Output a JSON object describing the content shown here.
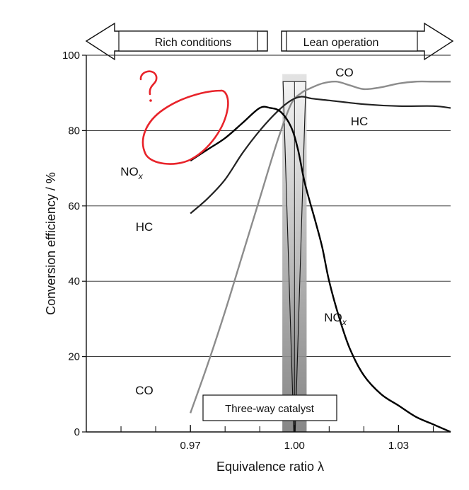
{
  "chart_data": {
    "type": "line",
    "xlabel": "Equivalence ratio λ",
    "ylabel": "Conversion efficiency / %",
    "xlim": [
      0.94,
      1.045
    ],
    "ylim": [
      0,
      100
    ],
    "xticks": [
      0.97,
      1.0,
      1.03
    ],
    "xtick_labels": [
      "0.97",
      "1.00",
      "1.03"
    ],
    "yticks": [
      0,
      20,
      40,
      60,
      80,
      100
    ],
    "ytick_labels": [
      "0",
      "20",
      "40",
      "60",
      "80",
      "100"
    ],
    "grid": "horizontal",
    "series": [
      {
        "name": "CO",
        "color": "#8c8c8c",
        "x": [
          0.97,
          0.975,
          0.98,
          0.985,
          0.99,
          0.995,
          0.999,
          1.002,
          1.004,
          1.008,
          1.012,
          1.016,
          1.02,
          1.025,
          1.03,
          1.035,
          1.04,
          1.045
        ],
        "y": [
          5,
          18,
          32,
          47,
          62,
          77,
          87,
          90,
          91,
          92.5,
          93,
          92,
          91,
          91.5,
          92.5,
          93,
          93,
          93
        ]
      },
      {
        "name": "HC",
        "color": "#222222",
        "x": [
          0.97,
          0.975,
          0.98,
          0.985,
          0.99,
          0.995,
          0.999,
          1.002,
          1.005,
          1.01,
          1.02,
          1.03,
          1.04,
          1.045
        ],
        "y": [
          58,
          62,
          67,
          74,
          80,
          85,
          88,
          89,
          88.5,
          88,
          87,
          86.5,
          86.5,
          86
        ]
      },
      {
        "name": "NOx",
        "color": "#000000",
        "x": [
          0.97,
          0.975,
          0.98,
          0.985,
          0.99,
          0.993,
          0.996,
          0.999,
          1.001,
          1.003,
          1.006,
          1.008,
          1.01,
          1.013,
          1.016,
          1.02,
          1.025,
          1.03,
          1.035,
          1.04,
          1.045
        ],
        "y": [
          72,
          75,
          78,
          82,
          86,
          86,
          85,
          81,
          75,
          66,
          56,
          49,
          40,
          30,
          22,
          15,
          10,
          7,
          4,
          2,
          0
        ]
      }
    ],
    "curve_labels": [
      {
        "series": "CO",
        "text": "CO",
        "x": 0.994,
        "y": 2,
        "dx": -190,
        "dy": -50
      },
      {
        "series": "HC",
        "text": "HC",
        "x": 0.97,
        "y": 55
      },
      {
        "series": "NOx",
        "text": "NO",
        "sub": "x",
        "x": 0.968,
        "y": 69
      },
      {
        "series": "CO",
        "text": "CO",
        "x": 1.021,
        "y": 95
      },
      {
        "series": "HC",
        "text": "HC",
        "x": 1.025,
        "y": 82
      },
      {
        "series": "NOx",
        "text": "NO",
        "sub": "x",
        "x": 1.018,
        "y": 30
      }
    ],
    "catalyst_window": {
      "center": 1.0,
      "half_width": 0.0035
    },
    "catalyst_label": "Three-way catalyst",
    "regions": {
      "rich": "Rich conditions",
      "lean": "Lean operation"
    },
    "annotation": {
      "text": "?",
      "color": "#e8232a"
    }
  }
}
